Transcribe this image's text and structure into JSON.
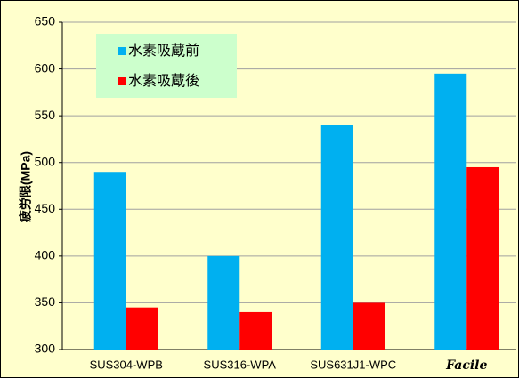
{
  "chart_data": {
    "type": "bar",
    "y_label": "疲労限(MPa)",
    "categories": [
      "SUS304-WPB",
      "SUS316-WPA",
      "SUS631J1-WPC",
      "Facile"
    ],
    "series": [
      {
        "name": "水素吸蔵前",
        "color": "#00b0f0",
        "values": [
          490,
          400,
          540,
          595
        ]
      },
      {
        "name": "水素吸蔵後",
        "color": "#ff0000",
        "values": [
          345,
          340,
          350,
          495
        ]
      }
    ],
    "ylim": [
      300,
      650
    ],
    "yticks": [
      300,
      350,
      400,
      450,
      500,
      550,
      600,
      650
    ],
    "grid": true,
    "legend": "top-left"
  }
}
